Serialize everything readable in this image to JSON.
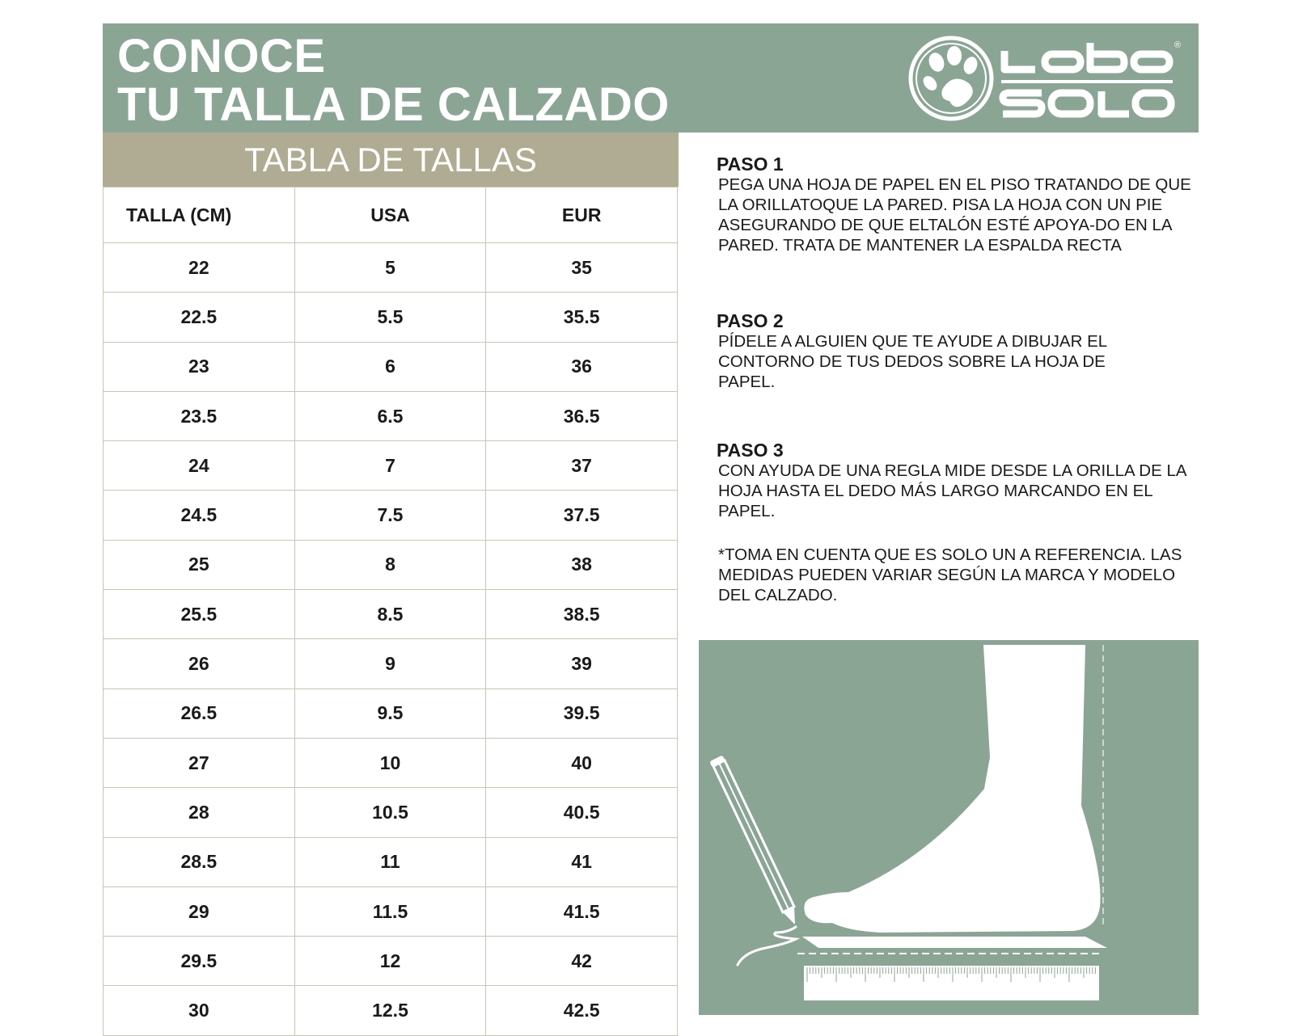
{
  "header": {
    "title_line1": "CONOCE",
    "title_line2": "TU TALLA DE CALZADO",
    "logo_text": "Lobo SOLO",
    "logo_registered": "®"
  },
  "table": {
    "title": "TABLA DE TALLAS",
    "columns": [
      "TALLA (CM)",
      "USA",
      "EUR"
    ],
    "rows": [
      [
        "22",
        "5",
        "35"
      ],
      [
        "22.5",
        "5.5",
        "35.5"
      ],
      [
        "23",
        "6",
        "36"
      ],
      [
        "23.5",
        "6.5",
        "36.5"
      ],
      [
        "24",
        "7",
        "37"
      ],
      [
        "24.5",
        "7.5",
        "37.5"
      ],
      [
        "25",
        "8",
        "38"
      ],
      [
        "25.5",
        "8.5",
        "38.5"
      ],
      [
        "26",
        "9",
        "39"
      ],
      [
        "26.5",
        "9.5",
        "39.5"
      ],
      [
        "27",
        "10",
        "40"
      ],
      [
        "28",
        "10.5",
        "40.5"
      ],
      [
        "28.5",
        "11",
        "41"
      ],
      [
        "29",
        "11.5",
        "41.5"
      ],
      [
        "29.5",
        "12",
        "42"
      ],
      [
        "30",
        "12.5",
        "42.5"
      ]
    ]
  },
  "steps": [
    {
      "title": "PASO 1",
      "text": "PEGA UNA HOJA DE PAPEL EN EL PISO TRATANDO DE QUE LA ORILLATOQUE LA PARED. PISA LA HOJA CON UN PIE ASEGURANDO DE QUE ELTALÓN ESTÉ APOYA-DO EN LA PARED. TRATA DE MANTENER LA ESPALDA RECTA"
    },
    {
      "title": "PASO 2",
      "text": "PÍDELE A ALGUIEN QUE TE AYUDE A DIBUJAR EL CONTORNO DE TUS DEDOS SOBRE LA HOJA DE PAPEL."
    },
    {
      "title": "PASO 3",
      "text": "CON AYUDA DE UNA REGLA MIDE DESDE LA ORILLA DE LA HOJA HASTA EL DEDO MÁS LARGO MARCANDO EN EL PAPEL."
    }
  ],
  "note": "*TOMA EN CUENTA QUE ES SOLO UN A REFERENCIA. LAS MEDIDAS PUEDEN VARIAR SEGÚN LA MARCA Y MODELO DEL CALZADO.",
  "colors": {
    "green": "#8ba595",
    "tan": "#b0ac93",
    "border": "#c9c6b4"
  }
}
